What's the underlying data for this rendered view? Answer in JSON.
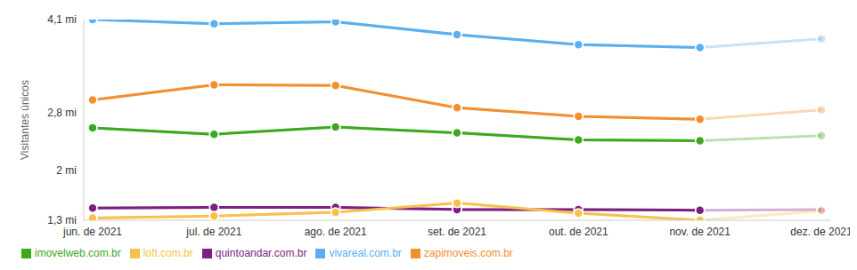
{
  "chart_data": {
    "type": "line",
    "y_label": "Visitantes únicos",
    "categories": [
      "jun. de 2021",
      "jul. de 2021",
      "ago. de 2021",
      "set. de 2021",
      "out. de 2021",
      "nov. de 2021",
      "dez. de 2021"
    ],
    "series": [
      {
        "name": "vivareal.com.br",
        "color": "#5aafef",
        "marker": "circle",
        "values": [
          4.1,
          4.04,
          4.07,
          3.89,
          3.75,
          3.71,
          3.83
        ]
      },
      {
        "name": "zapimoveis.com.br",
        "color": "#f28f31",
        "marker": "circle",
        "values": [
          2.98,
          3.19,
          3.18,
          2.87,
          2.75,
          2.71,
          2.84
        ]
      },
      {
        "name": "imovelweb.com.br",
        "color": "#3aa91e",
        "marker": "circle",
        "values": [
          2.59,
          2.5,
          2.6,
          2.52,
          2.42,
          2.41,
          2.48
        ]
      },
      {
        "name": "quintoandar.com.br",
        "color": "#7b1f80",
        "marker": "circle",
        "values": [
          1.47,
          1.48,
          1.48,
          1.45,
          1.45,
          1.44,
          1.45
        ]
      },
      {
        "name": "loft.com.br",
        "color": "#f8c14d",
        "marker": "circle",
        "values": [
          1.33,
          1.36,
          1.41,
          1.54,
          1.4,
          1.3,
          1.43
        ]
      }
    ],
    "ylim": [
      1.3,
      4.1
    ],
    "yticks": [
      {
        "value": 1.3,
        "label": "1,3 mi"
      },
      {
        "value": 2,
        "label": "2 mi"
      },
      {
        "value": 2.8,
        "label": "2,8 mi"
      },
      {
        "value": 4.1,
        "label": "4,1 mi"
      }
    ],
    "grid": false,
    "legend": "bottom-left"
  }
}
